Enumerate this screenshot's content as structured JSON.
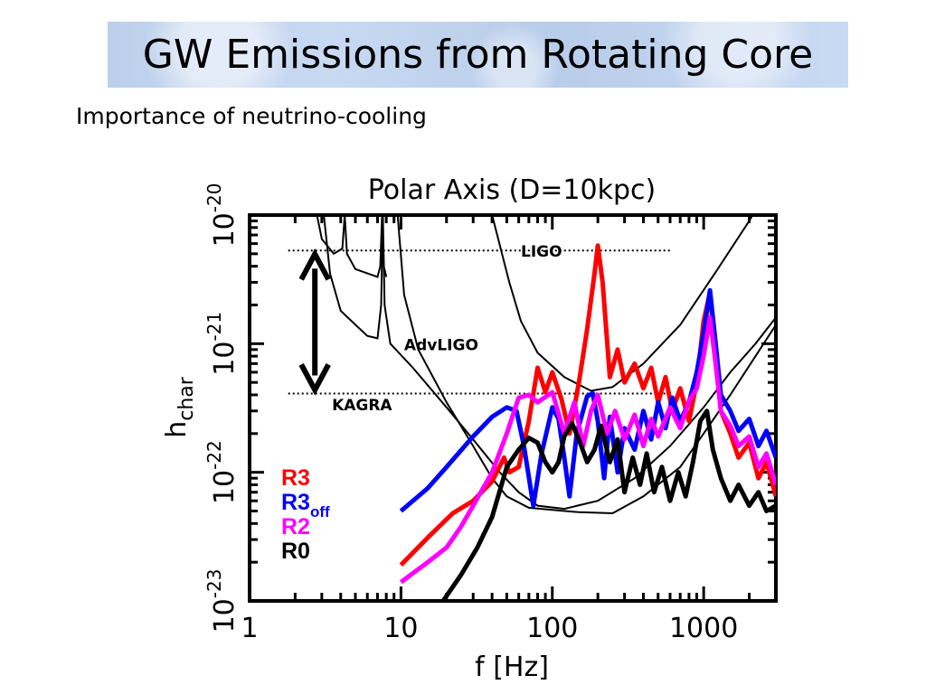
{
  "slide": {
    "title": "GW Emissions from Rotating Core",
    "subtitle": "Importance of neutrino-cooling"
  },
  "chart_data": {
    "type": "line",
    "title": "Polar Axis (D=10kpc)",
    "xlabel": "f  [Hz]",
    "ylabel": {
      "main": "h",
      "sub": "char"
    },
    "xscale": "log",
    "yscale": "log",
    "xlim": [
      1,
      3000
    ],
    "ylim": [
      1e-23,
      1e-20
    ],
    "x_ticks": [
      {
        "value": 1,
        "label": "1"
      },
      {
        "value": 10,
        "label": "10"
      },
      {
        "value": 100,
        "label": "100"
      },
      {
        "value": 1000,
        "label": "1000"
      }
    ],
    "y_ticks": [
      {
        "value": 1e-20,
        "base": "10",
        "exp": "-20"
      },
      {
        "value": 1e-21,
        "base": "10",
        "exp": "-21"
      },
      {
        "value": 1e-22,
        "base": "10",
        "exp": "-22"
      },
      {
        "value": 1e-23,
        "base": "10",
        "exp": "-23"
      }
    ],
    "detectors": [
      {
        "name": "LIGO",
        "label_at": [
          62,
          5.3e-21
        ],
        "color": "#000000",
        "points": [
          [
            40,
            1e-20
          ],
          [
            52,
            3e-21
          ],
          [
            62,
            1.5e-21
          ],
          [
            80,
            8.5e-22
          ],
          [
            120,
            5.5e-22
          ],
          [
            180,
            4.3e-22
          ],
          [
            250,
            4.6e-22
          ],
          [
            400,
            7e-22
          ],
          [
            700,
            1.4e-21
          ],
          [
            1200,
            3.6e-21
          ],
          [
            2000,
            9e-21
          ],
          [
            2300,
            1.2e-20
          ]
        ]
      },
      {
        "name": "AdvLIGO",
        "label_at": [
          10.5,
          1e-21
        ],
        "color": "#000000",
        "points": [
          [
            9.5,
            1e-20
          ],
          [
            10.5,
            2.4e-21
          ],
          [
            13,
            9e-22
          ],
          [
            20,
            3.5e-22
          ],
          [
            30,
            1.6e-22
          ],
          [
            40,
            9e-23
          ],
          [
            50,
            6.5e-23
          ],
          [
            70,
            5.3e-23
          ],
          [
            100,
            5.1e-23
          ],
          [
            150,
            4.9e-23
          ],
          [
            250,
            4.8e-23
          ],
          [
            400,
            6.5e-23
          ],
          [
            700,
            1.1e-22
          ],
          [
            1000,
            2e-22
          ],
          [
            1500,
            4e-22
          ],
          [
            2200,
            8e-22
          ],
          [
            3000,
            1.4e-21
          ]
        ]
      },
      {
        "name": "KAGRA",
        "label_at": [
          3.5,
          3.4e-22
        ],
        "color": "#000000",
        "points": [
          [
            3.0,
            1.4e-20
          ],
          [
            3.4,
            3.5e-21
          ],
          [
            4.0,
            1.8e-21
          ],
          [
            6.0,
            1.15e-21
          ],
          [
            7.0,
            1.1e-21
          ],
          [
            7.4,
            2e-21
          ],
          [
            7.6,
            1e-20
          ],
          [
            7.8,
            2e-21
          ],
          [
            8.5,
            1e-21
          ],
          [
            12,
            6.5e-22
          ],
          [
            20,
            3.2e-22
          ],
          [
            30,
            1.8e-22
          ],
          [
            45,
            1e-22
          ],
          [
            60,
            7e-23
          ],
          [
            80,
            5.5e-23
          ],
          [
            120,
            5.2e-23
          ],
          [
            200,
            6e-23
          ],
          [
            350,
            9e-23
          ],
          [
            600,
            1.6e-22
          ],
          [
            1000,
            3.2e-22
          ],
          [
            1500,
            6e-22
          ],
          [
            2200,
            1e-21
          ],
          [
            3000,
            1.6e-21
          ]
        ]
      },
      {
        "name": "",
        "label_at": null,
        "color": "#000000",
        "points": [
          [
            2.7,
            1.2e-20
          ],
          [
            3.0,
            6.5e-21
          ],
          [
            3.6,
            5e-21
          ],
          [
            4.1,
            5.5e-21
          ],
          [
            4.25,
            1e-20
          ],
          [
            4.4,
            5e-21
          ],
          [
            5,
            3.8e-21
          ],
          [
            7,
            3.3e-21
          ],
          [
            7.3,
            4e-21
          ],
          [
            7.5,
            1e-20
          ],
          [
            7.7,
            4e-21
          ],
          [
            8,
            3.3e-21
          ]
        ]
      }
    ],
    "reference_lines": [
      {
        "y": 5.3e-21,
        "x_range": [
          1.8,
          600
        ]
      },
      {
        "y": 4.1e-22,
        "x_range": [
          1.8,
          600
        ]
      }
    ],
    "double_arrow": {
      "x": 2.7,
      "y_range": [
        5.3e-21,
        4.1e-22
      ]
    },
    "series": [
      {
        "name": "R3",
        "sub": "",
        "color": "#ff0000",
        "points": [
          [
            10,
            1.9e-23
          ],
          [
            15,
            3.1e-23
          ],
          [
            22,
            4.8e-23
          ],
          [
            30,
            6e-23
          ],
          [
            40,
            8.5e-23
          ],
          [
            48,
            1.3e-22
          ],
          [
            52,
            1e-22
          ],
          [
            60,
            1.1e-22
          ],
          [
            70,
            2.5e-22
          ],
          [
            80,
            6.5e-22
          ],
          [
            90,
            4.2e-22
          ],
          [
            100,
            6e-22
          ],
          [
            115,
            3.7e-22
          ],
          [
            130,
            2e-22
          ],
          [
            150,
            5e-22
          ],
          [
            170,
            1.3e-21
          ],
          [
            190,
            3.5e-21
          ],
          [
            200,
            5.8e-21
          ],
          [
            215,
            3e-21
          ],
          [
            240,
            5.5e-22
          ],
          [
            270,
            9e-22
          ],
          [
            300,
            5e-22
          ],
          [
            350,
            7e-22
          ],
          [
            400,
            4.5e-22
          ],
          [
            450,
            6.5e-22
          ],
          [
            500,
            3.5e-22
          ],
          [
            560,
            5.5e-22
          ],
          [
            620,
            3e-22
          ],
          [
            700,
            4.5e-22
          ],
          [
            800,
            2.5e-22
          ],
          [
            900,
            5e-22
          ],
          [
            1000,
            1.5e-21
          ],
          [
            1100,
            2.5e-21
          ],
          [
            1200,
            8e-22
          ],
          [
            1300,
            3e-22
          ],
          [
            1500,
            2e-22
          ],
          [
            1700,
            1.3e-22
          ],
          [
            2000,
            1.7e-22
          ],
          [
            2300,
            9e-23
          ],
          [
            2600,
            1.2e-22
          ],
          [
            3000,
            6.5e-23
          ]
        ]
      },
      {
        "name": "R3",
        "sub": "off",
        "color": "#0000ff",
        "points": [
          [
            10,
            5e-23
          ],
          [
            15,
            7.5e-23
          ],
          [
            20,
            1.1e-22
          ],
          [
            30,
            1.9e-22
          ],
          [
            40,
            2.7e-22
          ],
          [
            50,
            3.2e-22
          ],
          [
            58,
            3e-22
          ],
          [
            65,
            1.6e-22
          ],
          [
            75,
            5.5e-23
          ],
          [
            85,
            1.4e-22
          ],
          [
            100,
            3.2e-22
          ],
          [
            110,
            2.6e-22
          ],
          [
            120,
            1.3e-22
          ],
          [
            130,
            6.5e-23
          ],
          [
            145,
            2e-22
          ],
          [
            170,
            3.9e-22
          ],
          [
            185,
            4.1e-22
          ],
          [
            200,
            2.5e-22
          ],
          [
            220,
            9e-23
          ],
          [
            240,
            2.7e-22
          ],
          [
            270,
            1e-22
          ],
          [
            300,
            2.2e-22
          ],
          [
            350,
            1.5e-22
          ],
          [
            400,
            3e-22
          ],
          [
            450,
            1.8e-22
          ],
          [
            500,
            3.5e-22
          ],
          [
            560,
            2.2e-22
          ],
          [
            620,
            3.8e-22
          ],
          [
            700,
            2.5e-22
          ],
          [
            800,
            3.5e-22
          ],
          [
            900,
            6e-22
          ],
          [
            1000,
            1.2e-21
          ],
          [
            1100,
            2.6e-21
          ],
          [
            1200,
            1e-21
          ],
          [
            1300,
            4e-22
          ],
          [
            1500,
            3e-22
          ],
          [
            1700,
            2.1e-22
          ],
          [
            2000,
            2.6e-22
          ],
          [
            2300,
            1.6e-22
          ],
          [
            2600,
            2.1e-22
          ],
          [
            3000,
            1.3e-22
          ]
        ]
      },
      {
        "name": "R2",
        "sub": "",
        "color": "#ff00ff",
        "points": [
          [
            10,
            1.4e-23
          ],
          [
            15,
            2e-23
          ],
          [
            20,
            2.6e-23
          ],
          [
            25,
            3.8e-23
          ],
          [
            30,
            5.5e-23
          ],
          [
            40,
            1e-22
          ],
          [
            50,
            2e-22
          ],
          [
            60,
            3.8e-22
          ],
          [
            70,
            4e-22
          ],
          [
            80,
            3.5e-22
          ],
          [
            100,
            4.2e-22
          ],
          [
            120,
            2e-22
          ],
          [
            140,
            3.5e-22
          ],
          [
            160,
            1.6e-22
          ],
          [
            180,
            3e-22
          ],
          [
            200,
            4e-22
          ],
          [
            230,
            2e-22
          ],
          [
            260,
            3e-22
          ],
          [
            300,
            1.8e-22
          ],
          [
            350,
            2.8e-22
          ],
          [
            400,
            1.6e-22
          ],
          [
            450,
            2.6e-22
          ],
          [
            500,
            1.9e-22
          ],
          [
            600,
            3.2e-22
          ],
          [
            700,
            2.2e-22
          ],
          [
            800,
            3.6e-22
          ],
          [
            900,
            4.5e-22
          ],
          [
            1000,
            8e-22
          ],
          [
            1100,
            1.6e-21
          ],
          [
            1200,
            7e-22
          ],
          [
            1300,
            3e-22
          ],
          [
            1500,
            2.3e-22
          ],
          [
            1700,
            1.6e-22
          ],
          [
            2000,
            1.9e-22
          ],
          [
            2300,
            1.1e-22
          ],
          [
            2600,
            1.4e-22
          ],
          [
            3000,
            8e-23
          ]
        ]
      },
      {
        "name": "R0",
        "sub": "",
        "color": "#000000",
        "points": [
          [
            19,
            1e-23
          ],
          [
            25,
            1.6e-23
          ],
          [
            32,
            2.6e-23
          ],
          [
            40,
            4.5e-23
          ],
          [
            50,
            1.1e-22
          ],
          [
            60,
            1.5e-22
          ],
          [
            70,
            1.85e-22
          ],
          [
            80,
            1.7e-22
          ],
          [
            90,
            1.2e-22
          ],
          [
            100,
            1e-22
          ],
          [
            110,
            1.2e-22
          ],
          [
            120,
            1.9e-22
          ],
          [
            135,
            2.4e-22
          ],
          [
            150,
            1.8e-22
          ],
          [
            170,
            1.2e-22
          ],
          [
            190,
            1.5e-22
          ],
          [
            210,
            2.3e-22
          ],
          [
            240,
            1.2e-22
          ],
          [
            270,
            1.8e-22
          ],
          [
            300,
            7e-23
          ],
          [
            340,
            1.3e-22
          ],
          [
            380,
            8e-23
          ],
          [
            420,
            1.4e-22
          ],
          [
            470,
            7e-23
          ],
          [
            530,
            1.1e-22
          ],
          [
            600,
            6e-23
          ],
          [
            680,
            1e-22
          ],
          [
            760,
            6.5e-23
          ],
          [
            850,
            1.2e-22
          ],
          [
            950,
            2.5e-22
          ],
          [
            1050,
            3e-22
          ],
          [
            1150,
            1.5e-22
          ],
          [
            1300,
            9e-23
          ],
          [
            1500,
            6e-23
          ],
          [
            1700,
            8e-23
          ],
          [
            2000,
            5.5e-23
          ],
          [
            2300,
            7e-23
          ],
          [
            2600,
            5e-23
          ],
          [
            3000,
            5.5e-23
          ]
        ]
      }
    ],
    "grid": false
  }
}
